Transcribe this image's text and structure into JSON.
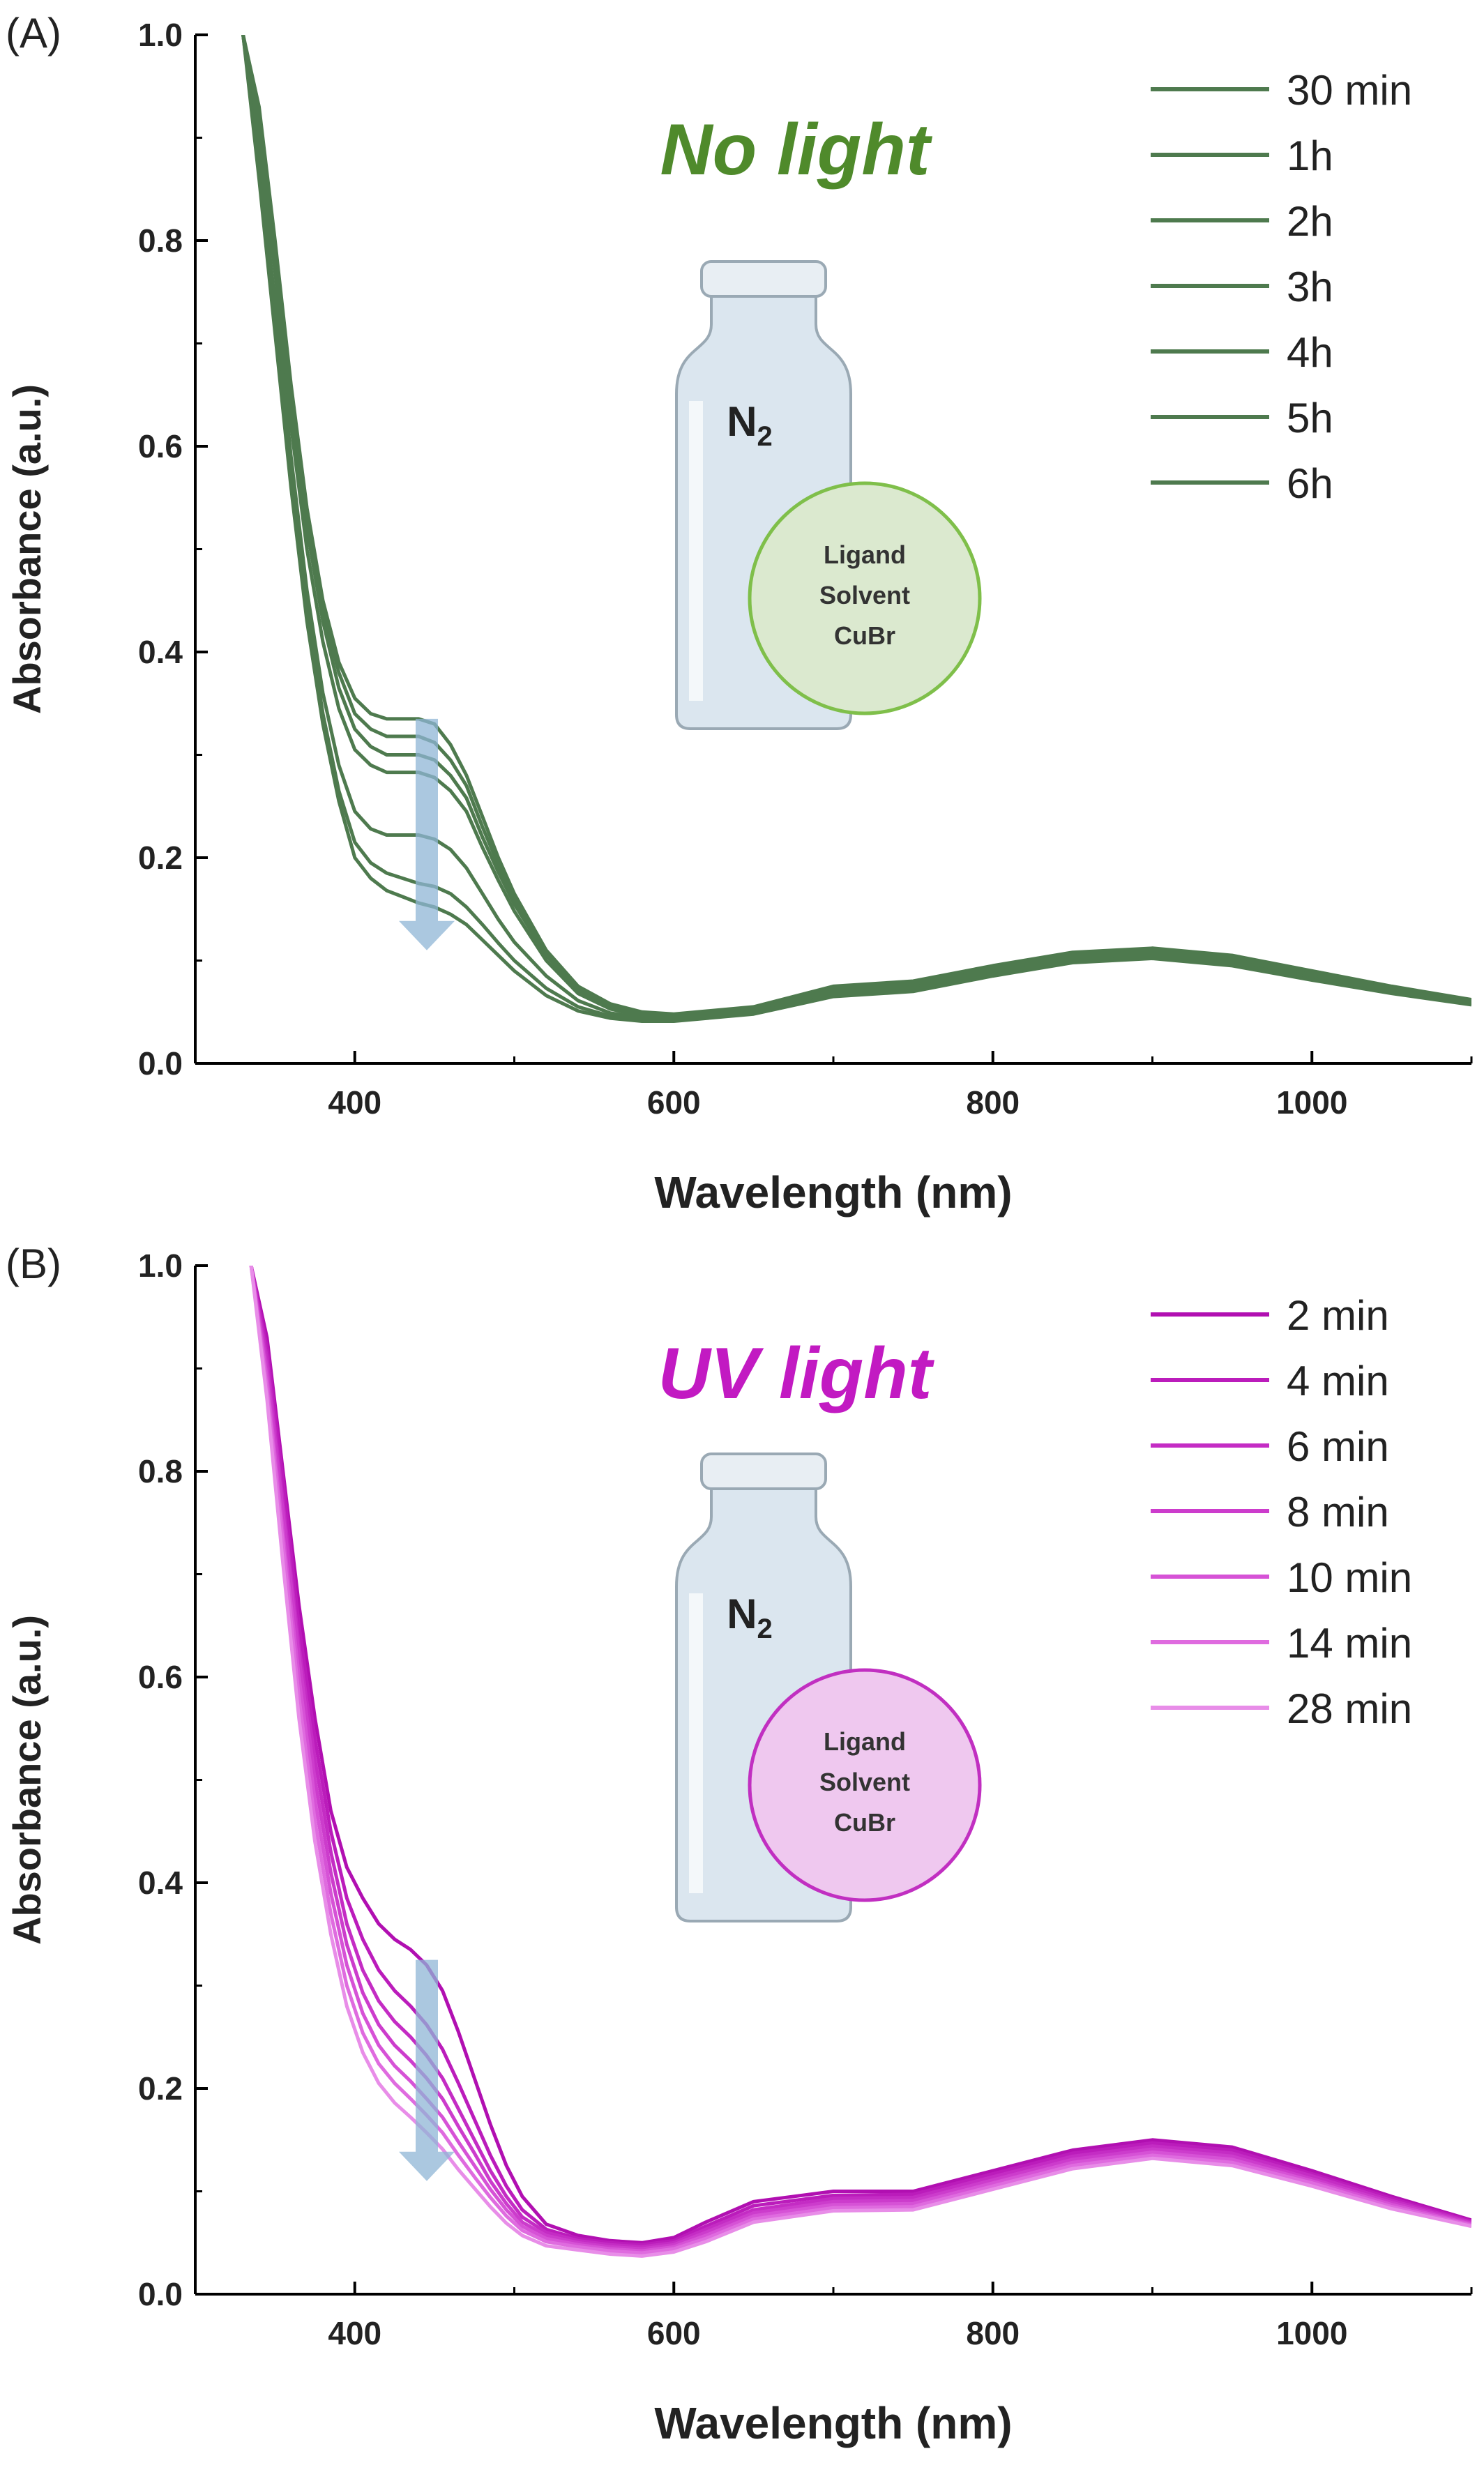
{
  "colors": {
    "panel_a_series": "#4e7a4e",
    "panel_a_title": "#4f8a2b",
    "panel_b_series": [
      "#b10fb1",
      "#bb1cbb",
      "#c42cc4",
      "#cc3ccc",
      "#d652d6",
      "#df6bdf",
      "#e88de8"
    ],
    "panel_b_title": "#c21ac2",
    "arrow": "#8fb6d6",
    "bottle": "#dbe6ef",
    "circle_a_fill": "#dbe9cf",
    "circle_a_stroke": "#7fbf4a",
    "circle_b_fill": "#efc8ef",
    "circle_b_stroke": "#c12fc1"
  },
  "chart_data": [
    {
      "type": "line",
      "panel_label": "(A)",
      "title": "No light",
      "xlabel": "Wavelength (nm)",
      "ylabel": "Absorbance (a.u.)",
      "xlim": [
        300,
        1100
      ],
      "ylim": [
        0.0,
        1.0
      ],
      "xticks": [
        "400",
        "600",
        "800",
        "1000"
      ],
      "yticks": [
        "0.0",
        "0.2",
        "0.4",
        "0.6",
        "0.8",
        "1.0"
      ],
      "legend_position": "top-right",
      "inset": {
        "gas": "N",
        "gas_subscript": "2",
        "contents": [
          "Ligand",
          "Solvent",
          "CuBr"
        ]
      },
      "x": [
        330,
        340,
        350,
        360,
        370,
        380,
        390,
        400,
        410,
        420,
        430,
        440,
        450,
        460,
        470,
        480,
        490,
        500,
        520,
        540,
        560,
        580,
        600,
        650,
        700,
        750,
        800,
        850,
        900,
        950,
        1000,
        1050,
        1100
      ],
      "series": [
        {
          "name": "30 min",
          "values": [
            1.0,
            0.93,
            0.8,
            0.66,
            0.54,
            0.45,
            0.39,
            0.355,
            0.34,
            0.335,
            0.335,
            0.335,
            0.33,
            0.31,
            0.28,
            0.24,
            0.2,
            0.165,
            0.11,
            0.075,
            0.058,
            0.05,
            0.048,
            0.055,
            0.075,
            0.08,
            0.095,
            0.108,
            0.112,
            0.105,
            0.09,
            0.075,
            0.062
          ]
        },
        {
          "name": "1h",
          "values": [
            1.0,
            0.92,
            0.79,
            0.65,
            0.53,
            0.44,
            0.38,
            0.34,
            0.325,
            0.318,
            0.318,
            0.318,
            0.312,
            0.295,
            0.27,
            0.23,
            0.193,
            0.16,
            0.108,
            0.073,
            0.056,
            0.049,
            0.047,
            0.054,
            0.073,
            0.078,
            0.093,
            0.106,
            0.11,
            0.103,
            0.088,
            0.074,
            0.061
          ]
        },
        {
          "name": "2h",
          "values": [
            1.0,
            0.91,
            0.78,
            0.64,
            0.52,
            0.43,
            0.365,
            0.325,
            0.308,
            0.3,
            0.3,
            0.3,
            0.295,
            0.28,
            0.258,
            0.22,
            0.186,
            0.155,
            0.105,
            0.071,
            0.055,
            0.048,
            0.046,
            0.053,
            0.071,
            0.076,
            0.091,
            0.104,
            0.108,
            0.101,
            0.086,
            0.072,
            0.06
          ]
        },
        {
          "name": "3h",
          "values": [
            1.0,
            0.9,
            0.77,
            0.62,
            0.5,
            0.41,
            0.345,
            0.305,
            0.29,
            0.283,
            0.283,
            0.283,
            0.278,
            0.265,
            0.245,
            0.21,
            0.178,
            0.148,
            0.1,
            0.068,
            0.053,
            0.046,
            0.045,
            0.052,
            0.069,
            0.074,
            0.089,
            0.102,
            0.106,
            0.099,
            0.085,
            0.071,
            0.06
          ]
        },
        {
          "name": "4h",
          "values": [
            1.0,
            0.88,
            0.74,
            0.59,
            0.46,
            0.36,
            0.29,
            0.245,
            0.228,
            0.222,
            0.222,
            0.222,
            0.218,
            0.208,
            0.19,
            0.165,
            0.14,
            0.118,
            0.085,
            0.061,
            0.049,
            0.044,
            0.043,
            0.05,
            0.067,
            0.072,
            0.087,
            0.1,
            0.104,
            0.097,
            0.083,
            0.07,
            0.059
          ]
        },
        {
          "name": "5h",
          "values": [
            1.0,
            0.87,
            0.72,
            0.57,
            0.44,
            0.34,
            0.265,
            0.215,
            0.195,
            0.185,
            0.18,
            0.175,
            0.172,
            0.165,
            0.152,
            0.135,
            0.117,
            0.1,
            0.073,
            0.055,
            0.046,
            0.042,
            0.042,
            0.049,
            0.066,
            0.071,
            0.086,
            0.099,
            0.103,
            0.096,
            0.082,
            0.069,
            0.058
          ]
        },
        {
          "name": "6h",
          "values": [
            1.0,
            0.86,
            0.71,
            0.56,
            0.43,
            0.33,
            0.255,
            0.2,
            0.18,
            0.168,
            0.162,
            0.156,
            0.152,
            0.145,
            0.135,
            0.12,
            0.105,
            0.09,
            0.066,
            0.051,
            0.044,
            0.041,
            0.041,
            0.048,
            0.065,
            0.07,
            0.085,
            0.098,
            0.102,
            0.095,
            0.081,
            0.068,
            0.057
          ]
        }
      ]
    },
    {
      "type": "line",
      "panel_label": "(B)",
      "title": "UV light",
      "xlabel": "Wavelength (nm)",
      "ylabel": "Absorbance (a.u.)",
      "xlim": [
        300,
        1100
      ],
      "ylim": [
        0.0,
        1.0
      ],
      "xticks": [
        "400",
        "600",
        "800",
        "1000"
      ],
      "yticks": [
        "0.0",
        "0.2",
        "0.4",
        "0.6",
        "0.8",
        "1.0"
      ],
      "legend_position": "top-right",
      "inset": {
        "gas": "N",
        "gas_subscript": "2",
        "contents": [
          "Ligand",
          "Solvent",
          "CuBr"
        ]
      },
      "x": [
        335,
        345,
        355,
        365,
        375,
        385,
        395,
        405,
        415,
        425,
        435,
        445,
        455,
        465,
        475,
        485,
        495,
        505,
        520,
        540,
        560,
        580,
        600,
        620,
        650,
        700,
        750,
        800,
        850,
        900,
        950,
        1000,
        1050,
        1100
      ],
      "series": [
        {
          "name": "2 min",
          "values": [
            1.0,
            0.93,
            0.8,
            0.67,
            0.56,
            0.47,
            0.415,
            0.385,
            0.36,
            0.345,
            0.335,
            0.32,
            0.295,
            0.255,
            0.21,
            0.165,
            0.125,
            0.095,
            0.068,
            0.057,
            0.052,
            0.05,
            0.055,
            0.07,
            0.09,
            0.1,
            0.1,
            0.12,
            0.14,
            0.15,
            0.143,
            0.12,
            0.095,
            0.072
          ]
        },
        {
          "name": "4 min",
          "values": [
            1.0,
            0.92,
            0.79,
            0.65,
            0.54,
            0.45,
            0.385,
            0.345,
            0.315,
            0.295,
            0.28,
            0.262,
            0.238,
            0.205,
            0.17,
            0.135,
            0.105,
            0.082,
            0.063,
            0.054,
            0.05,
            0.048,
            0.052,
            0.066,
            0.086,
            0.096,
            0.097,
            0.117,
            0.137,
            0.147,
            0.14,
            0.117,
            0.093,
            0.071
          ]
        },
        {
          "name": "6 min",
          "values": [
            1.0,
            0.91,
            0.77,
            0.63,
            0.52,
            0.43,
            0.36,
            0.315,
            0.285,
            0.265,
            0.25,
            0.232,
            0.21,
            0.18,
            0.15,
            0.12,
            0.095,
            0.075,
            0.06,
            0.052,
            0.048,
            0.046,
            0.05,
            0.063,
            0.082,
            0.093,
            0.094,
            0.114,
            0.134,
            0.144,
            0.137,
            0.115,
            0.091,
            0.07
          ]
        },
        {
          "name": "8 min",
          "values": [
            1.0,
            0.9,
            0.76,
            0.62,
            0.5,
            0.41,
            0.34,
            0.293,
            0.262,
            0.242,
            0.227,
            0.21,
            0.19,
            0.163,
            0.137,
            0.11,
            0.088,
            0.07,
            0.057,
            0.05,
            0.046,
            0.044,
            0.048,
            0.06,
            0.079,
            0.09,
            0.091,
            0.111,
            0.131,
            0.141,
            0.134,
            0.112,
            0.089,
            0.069
          ]
        },
        {
          "name": "10 min",
          "values": [
            1.0,
            0.89,
            0.74,
            0.6,
            0.48,
            0.39,
            0.32,
            0.273,
            0.242,
            0.222,
            0.207,
            0.19,
            0.172,
            0.148,
            0.125,
            0.102,
            0.082,
            0.066,
            0.054,
            0.048,
            0.044,
            0.042,
            0.046,
            0.057,
            0.076,
            0.087,
            0.088,
            0.108,
            0.128,
            0.138,
            0.131,
            0.11,
            0.087,
            0.068
          ]
        },
        {
          "name": "14 min",
          "values": [
            1.0,
            0.88,
            0.73,
            0.58,
            0.46,
            0.37,
            0.3,
            0.254,
            0.224,
            0.205,
            0.19,
            0.174,
            0.157,
            0.135,
            0.114,
            0.094,
            0.076,
            0.062,
            0.051,
            0.046,
            0.042,
            0.04,
            0.044,
            0.054,
            0.073,
            0.084,
            0.085,
            0.105,
            0.125,
            0.135,
            0.128,
            0.108,
            0.085,
            0.067
          ]
        },
        {
          "name": "28 min",
          "values": [
            1.0,
            0.87,
            0.71,
            0.56,
            0.44,
            0.35,
            0.28,
            0.235,
            0.205,
            0.186,
            0.172,
            0.157,
            0.141,
            0.121,
            0.103,
            0.085,
            0.069,
            0.057,
            0.047,
            0.043,
            0.039,
            0.037,
            0.041,
            0.051,
            0.07,
            0.081,
            0.082,
            0.102,
            0.122,
            0.132,
            0.125,
            0.105,
            0.083,
            0.066
          ]
        }
      ]
    }
  ]
}
